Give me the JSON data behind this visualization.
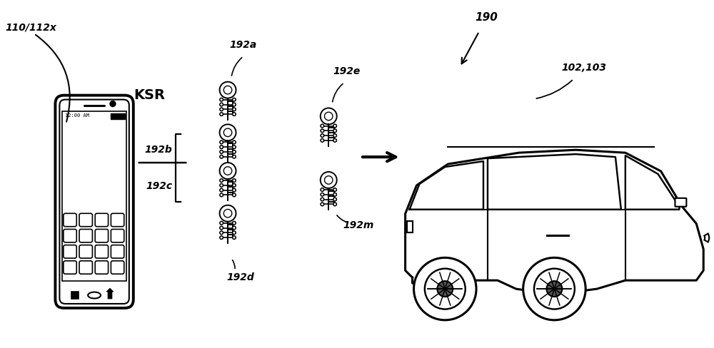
{
  "bg_color": "#ffffff",
  "line_color": "#000000",
  "labels": {
    "phone": "110/112x",
    "car": "102,103",
    "arrow_car": "190",
    "ksr": "KSR",
    "key_a": "192a",
    "key_b": "192b",
    "key_c": "192c",
    "key_d": "192d",
    "key_e": "192e",
    "key_m": "192m"
  },
  "figsize": [
    10.0,
    4.88
  ],
  "dpi": 100
}
